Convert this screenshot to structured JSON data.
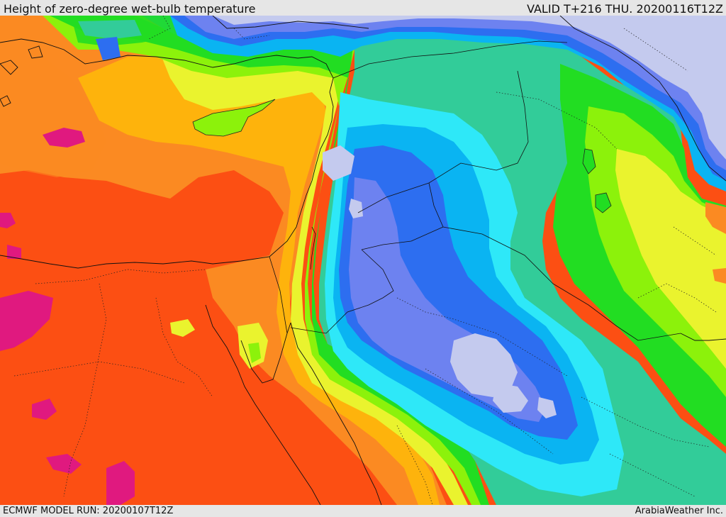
{
  "header": {
    "title": "Height of zero-degree wet-bulb temperature",
    "valid_time": "VALID T+216 THU. 20200116T12Z"
  },
  "footer": {
    "model_run": "ECMWF MODEL RUN: 20200107T12Z",
    "credit": "ArabiaWeather Inc."
  },
  "palette": {
    "magenta": "#e0197f",
    "red_orange": "#fc4f13",
    "orange": "#fb8a22",
    "amber": "#feb30c",
    "yellow": "#eaf32e",
    "lime": "#8cf20b",
    "green": "#22dd22",
    "teal": "#32cc99",
    "cyan": "#2ee8f8",
    "sky_blue": "#0ab4f2",
    "blue": "#2d6ef0",
    "periwinkle": "#6d82f0",
    "lavender": "#c4caee"
  },
  "icons": [
    "coastline-outline",
    "border-outline"
  ]
}
